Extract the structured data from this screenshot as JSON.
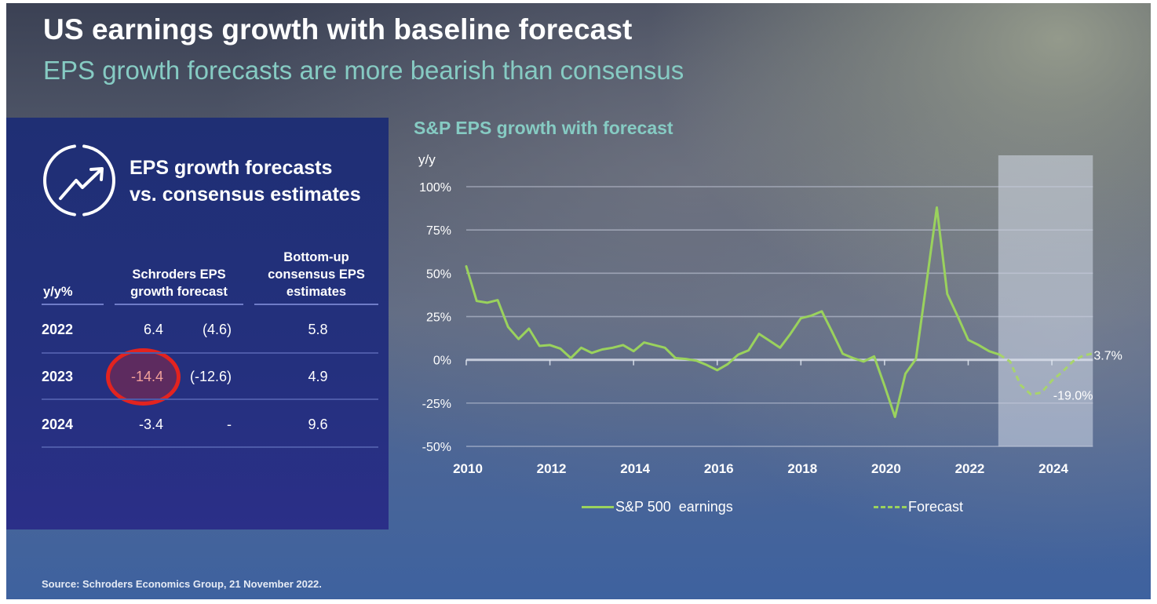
{
  "page": {
    "title": "US earnings growth with baseline forecast",
    "subtitle": "EPS growth forecasts are more bearish than consensus",
    "source": "Source: Schroders Economics Group, 21 November 2022."
  },
  "colors": {
    "accent_teal": "#86cbc3",
    "panel_bg": "#23307c",
    "series_green": "#9ad25d",
    "highlight_red": "#e3231f",
    "highlight_text": "#f2a19a"
  },
  "left_panel": {
    "icon": "trend-up-circle-icon",
    "heading": [
      "EPS growth forecasts",
      "vs. consensus estimates"
    ],
    "table": {
      "headers": [
        {
          "lines": [
            "y/y%"
          ]
        },
        {
          "lines": [
            "Schroders EPS",
            "growth forecast"
          ]
        },
        {
          "lines": [
            "Bottom-up",
            "consensus EPS",
            "estimates"
          ]
        }
      ],
      "rows": [
        {
          "year": "2022",
          "schroders_forecast": "6.4",
          "previous_forecast": "(4.6)",
          "consensus_estimate": "5.8",
          "highlighted": false
        },
        {
          "year": "2023",
          "schroders_forecast": "-14.4",
          "previous_forecast": "(-12.6)",
          "consensus_estimate": "4.9",
          "highlighted": true
        },
        {
          "year": "2024",
          "schroders_forecast": "-3.4",
          "previous_forecast": "-",
          "consensus_estimate": "9.6",
          "highlighted": false
        }
      ]
    }
  },
  "chart_data": {
    "type": "line",
    "title": "S&P EPS growth with forecast",
    "xlabel": "",
    "ylabel": "y/y",
    "xlim": [
      2010,
      2025
    ],
    "ylim": [
      -50,
      100
    ],
    "yticks": [
      100,
      75,
      50,
      25,
      0,
      -25,
      -50
    ],
    "ytick_labels": [
      "100%",
      "75%",
      "50%",
      "25%",
      "0%",
      "-25%",
      "-50%"
    ],
    "xticks": [
      2010,
      2012,
      2014,
      2016,
      2018,
      2020,
      2022,
      2024
    ],
    "xtick_labels": [
      "2010",
      "2012",
      "2014",
      "2016",
      "2018",
      "2020",
      "2022",
      "2024"
    ],
    "grid": true,
    "legend_position": "bottom",
    "legend": [
      {
        "label": "S&P 500  earnings",
        "style": "solid"
      },
      {
        "label": "Forecast",
        "style": "dashed"
      }
    ],
    "forecast_region": {
      "x_start": 2022.72,
      "x_end": 2024.98
    },
    "series": [
      {
        "name": "S&P 500  earnings",
        "style": "solid",
        "x": [
          2010,
          2010.25,
          2010.5,
          2010.75,
          2011,
          2011.25,
          2011.5,
          2011.75,
          2012,
          2012.25,
          2012.5,
          2012.75,
          2013,
          2013.25,
          2013.5,
          2013.75,
          2014,
          2014.25,
          2014.5,
          2014.75,
          2015,
          2015.25,
          2015.5,
          2015.75,
          2016,
          2016.25,
          2016.5,
          2016.75,
          2017,
          2017.25,
          2017.5,
          2017.75,
          2018,
          2018.25,
          2018.5,
          2018.75,
          2019,
          2019.25,
          2019.5,
          2019.75,
          2020,
          2020.25,
          2020.5,
          2020.75,
          2021,
          2021.25,
          2021.5,
          2021.75,
          2022,
          2022.25,
          2022.5,
          2022.75
        ],
        "y": [
          54,
          34,
          33,
          34.5,
          19,
          12,
          18,
          8,
          8.5,
          6.5,
          1,
          7,
          4,
          6,
          7,
          8.5,
          5,
          10,
          8.5,
          7,
          1,
          0.5,
          -0.5,
          -3,
          -6,
          -2.5,
          3,
          5.5,
          15,
          11,
          7,
          15,
          24,
          25.5,
          28,
          16,
          3.5,
          1,
          -1,
          2,
          -15,
          -33,
          -8,
          0.5,
          44,
          88,
          38,
          25,
          11.5,
          8.5,
          5,
          3
        ]
      },
      {
        "name": "Forecast",
        "style": "dashed",
        "x": [
          2022.75,
          2023,
          2023.25,
          2023.5,
          2023.75,
          2024,
          2024.25,
          2024.5,
          2024.75,
          2025
        ],
        "y": [
          3,
          -1,
          -14.5,
          -20,
          -19,
          -12,
          -7,
          -1,
          2.5,
          3.7
        ]
      }
    ],
    "annotations": [
      {
        "text": "3.7%",
        "x": 2025,
        "y": 3.7
      },
      {
        "text": "-19.0%",
        "x": 2023.75,
        "y": -19.0
      }
    ]
  }
}
